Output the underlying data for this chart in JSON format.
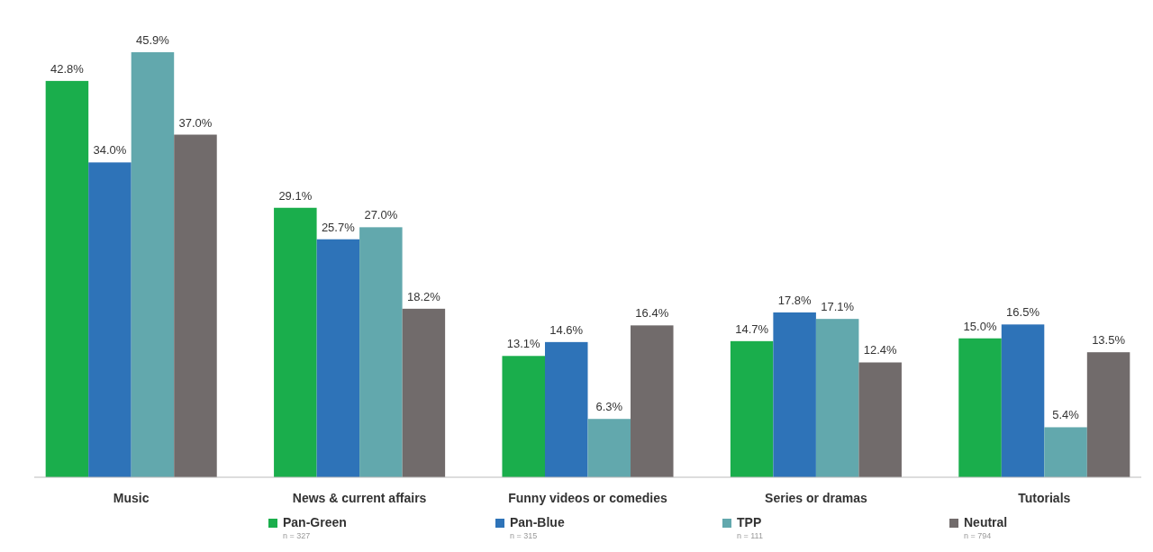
{
  "chart_data": {
    "type": "bar",
    "categories": [
      "Music",
      "News & current affairs",
      "Funny videos or comedies",
      "Series or dramas",
      "Tutorials"
    ],
    "series": [
      {
        "name": "Pan-Green",
        "color": "#1aae4c",
        "values": [
          42.8,
          29.1,
          13.1,
          14.7,
          15.0
        ],
        "value_labels": [
          "42.8%",
          "29.1%",
          "13.1%",
          "14.7%",
          "15.0%"
        ]
      },
      {
        "name": "Pan-Blue",
        "color": "#2e73b8",
        "values": [
          34.0,
          25.7,
          14.6,
          17.8,
          16.5
        ],
        "value_labels": [
          "34.0%",
          "25.7%",
          "14.6%",
          "17.8%",
          "16.5%"
        ]
      },
      {
        "name": "TPP",
        "color": "#62a8ad",
        "values": [
          45.9,
          27.0,
          6.3,
          17.1,
          5.4
        ],
        "value_labels": [
          "45.9%",
          "27.0%",
          "6.3%",
          "17.1%",
          "5.4%"
        ]
      },
      {
        "name": "Neutral",
        "color": "#716b6b",
        "values": [
          37.0,
          18.2,
          16.4,
          12.4,
          13.5
        ],
        "value_labels": [
          "37.0%",
          "18.2%",
          "16.4%",
          "12.4%",
          "13.5%"
        ]
      }
    ],
    "annotations": [
      "n = 327",
      "n = 315",
      "n = 111",
      "n = 794"
    ],
    "legend": "bottom",
    "grid": false
  }
}
